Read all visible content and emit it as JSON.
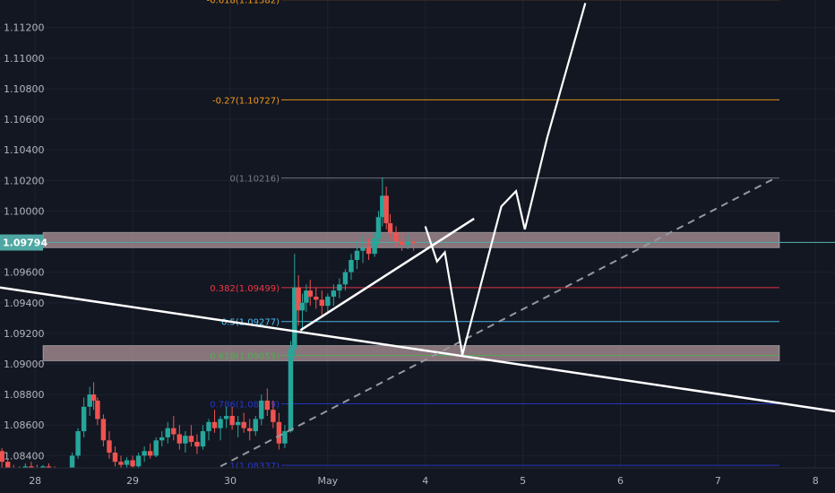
{
  "chart_data": {
    "type": "candlestick",
    "y_axis": {
      "ticks": [
        "1.08400",
        "1.08600",
        "1.08800",
        "1.09000",
        "1.09200",
        "1.09400",
        "1.09600",
        "1.09800",
        "1.10000",
        "1.10200",
        "1.10400",
        "1.10600",
        "1.10800",
        "1.11000",
        "1.11200"
      ],
      "ylim": [
        1.0832,
        1.1138
      ],
      "current_price": "1.09794",
      "current_price_bg": "#4fa7a3"
    },
    "x_axis": {
      "ticks": [
        {
          "label": "28",
          "day": 28
        },
        {
          "label": "29",
          "day": 29
        },
        {
          "label": "30",
          "day": 30
        },
        {
          "label": "May",
          "day": 31
        },
        {
          "label": "4",
          "day": 32
        },
        {
          "label": "5",
          "day": 33
        },
        {
          "label": "6",
          "day": 34
        },
        {
          "label": "7",
          "day": 35
        },
        {
          "label": "8",
          "day": 36
        }
      ],
      "xlim": [
        27.64,
        36.2
      ]
    },
    "colors": {
      "up": "#26a69a",
      "down": "#ef5350",
      "grid": "#1e2230",
      "background": "#131722"
    },
    "fib_levels": [
      {
        "label": "-0.618(1.11382)",
        "price": 1.11382,
        "color": "#f59b1c"
      },
      {
        "label": "-0.27(1.10727)",
        "price": 1.10727,
        "color": "#f59b1c"
      },
      {
        "label": "0(1.10216)",
        "price": 1.10216,
        "color": "#787b86"
      },
      {
        "label": "0.382(1.09499)",
        "price": 1.09499,
        "color": "#f23645"
      },
      {
        "label": "0.5(1.09277)",
        "price": 1.09277,
        "color": "#4fc3f7"
      },
      {
        "label": "0.618(1.09055)",
        "price": 1.09055,
        "color": "#4caf50"
      },
      {
        "label": "0.786(1.08739)",
        "price": 1.08739,
        "color": "#2936cc"
      },
      {
        "label": "1(1.08337)",
        "price": 1.08337,
        "color": "#2936cc"
      }
    ],
    "zones": [
      {
        "name": "resistance",
        "low": 1.0976,
        "high": 1.0986,
        "color": "#b0949a"
      },
      {
        "name": "support",
        "low": 1.0902,
        "high": 1.0912,
        "color": "#b0949a"
      }
    ],
    "current_price_line": 1.09794,
    "candles": [
      [
        27.66,
        1.0843,
        1.0845,
        1.0832,
        1.0836
      ],
      [
        27.72,
        1.0836,
        1.0838,
        1.0829,
        1.0832
      ],
      [
        27.78,
        1.0832,
        1.0834,
        1.0828,
        1.083
      ],
      [
        27.84,
        1.083,
        1.0833,
        1.0827,
        1.0831
      ],
      [
        27.9,
        1.0831,
        1.0835,
        1.0829,
        1.0833
      ],
      [
        27.96,
        1.0833,
        1.0836,
        1.083,
        1.0832
      ],
      [
        28.02,
        1.0832,
        1.0834,
        1.0829,
        1.0831
      ],
      [
        28.08,
        1.0831,
        1.0834,
        1.0829,
        1.0833
      ],
      [
        28.14,
        1.0833,
        1.0835,
        1.083,
        1.0831
      ],
      [
        28.2,
        1.0831,
        1.0833,
        1.0828,
        1.083
      ],
      [
        28.26,
        1.083,
        1.0832,
        1.0827,
        1.0829
      ],
      [
        28.32,
        1.0829,
        1.0831,
        1.0826,
        1.0828
      ],
      [
        28.38,
        1.0828,
        1.0842,
        1.0826,
        1.084
      ],
      [
        28.44,
        1.084,
        1.0858,
        1.0838,
        1.0856
      ],
      [
        28.5,
        1.0856,
        1.0878,
        1.0852,
        1.0872
      ],
      [
        28.56,
        1.0872,
        1.0885,
        1.0866,
        1.088
      ],
      [
        28.6,
        1.088,
        1.0888,
        1.087,
        1.0876
      ],
      [
        28.64,
        1.0876,
        1.0878,
        1.086,
        1.0864
      ],
      [
        28.7,
        1.0864,
        1.0867,
        1.0846,
        1.085
      ],
      [
        28.76,
        1.085,
        1.0856,
        1.0838,
        1.0842
      ],
      [
        28.82,
        1.0842,
        1.0846,
        1.0833,
        1.0836
      ],
      [
        28.88,
        1.0836,
        1.084,
        1.083,
        1.0834
      ],
      [
        28.94,
        1.0834,
        1.0839,
        1.083,
        1.0837
      ],
      [
        29.0,
        1.0837,
        1.084,
        1.0831,
        1.0833
      ],
      [
        29.06,
        1.0833,
        1.0842,
        1.0831,
        1.084
      ],
      [
        29.12,
        1.084,
        1.0846,
        1.0836,
        1.0843
      ],
      [
        29.18,
        1.0843,
        1.0848,
        1.0838,
        1.084
      ],
      [
        29.24,
        1.084,
        1.0852,
        1.0839,
        1.085
      ],
      [
        29.3,
        1.085,
        1.0856,
        1.0846,
        1.0852
      ],
      [
        29.36,
        1.0852,
        1.0862,
        1.0848,
        1.0858
      ],
      [
        29.42,
        1.0858,
        1.0866,
        1.085,
        1.0854
      ],
      [
        29.48,
        1.0854,
        1.086,
        1.0844,
        1.0848
      ],
      [
        29.54,
        1.0848,
        1.0856,
        1.0842,
        1.0853
      ],
      [
        29.6,
        1.0853,
        1.086,
        1.0846,
        1.0849
      ],
      [
        29.66,
        1.0849,
        1.0854,
        1.0841,
        1.0846
      ],
      [
        29.72,
        1.0846,
        1.086,
        1.0844,
        1.0856
      ],
      [
        29.78,
        1.0856,
        1.0864,
        1.085,
        1.0862
      ],
      [
        29.84,
        1.0862,
        1.087,
        1.0855,
        1.0858
      ],
      [
        29.9,
        1.0858,
        1.0866,
        1.085,
        1.0864
      ],
      [
        29.96,
        1.0864,
        1.0872,
        1.0858,
        1.0866
      ],
      [
        30.02,
        1.0866,
        1.0872,
        1.0857,
        1.086
      ],
      [
        30.08,
        1.086,
        1.0866,
        1.0852,
        1.0862
      ],
      [
        30.14,
        1.0862,
        1.0868,
        1.0855,
        1.0858
      ],
      [
        30.2,
        1.0858,
        1.0864,
        1.085,
        1.0856
      ],
      [
        30.26,
        1.0856,
        1.0866,
        1.0853,
        1.0864
      ],
      [
        30.32,
        1.0864,
        1.088,
        1.086,
        1.0876
      ],
      [
        30.38,
        1.0876,
        1.0884,
        1.0866,
        1.087
      ],
      [
        30.44,
        1.087,
        1.0876,
        1.0858,
        1.0862
      ],
      [
        30.5,
        1.0862,
        1.0868,
        1.0844,
        1.0848
      ],
      [
        30.56,
        1.0848,
        1.086,
        1.0845,
        1.0856
      ],
      [
        30.62,
        1.0856,
        1.0915,
        1.0855,
        1.091
      ],
      [
        30.66,
        1.091,
        1.0972,
        1.0905,
        1.095
      ],
      [
        30.7,
        1.095,
        1.0958,
        1.0925,
        1.0935
      ],
      [
        30.74,
        1.0935,
        1.0946,
        1.0922,
        1.094
      ],
      [
        30.78,
        1.094,
        1.0952,
        1.0934,
        1.0948
      ],
      [
        30.82,
        1.0948,
        1.0955,
        1.0938,
        1.0944
      ],
      [
        30.88,
        1.0944,
        1.095,
        1.0936,
        1.0942
      ],
      [
        30.94,
        1.0942,
        1.0948,
        1.0932,
        1.0938
      ],
      [
        31.0,
        1.0938,
        1.0946,
        1.0934,
        1.0944
      ],
      [
        31.06,
        1.0944,
        1.0952,
        1.0938,
        1.0948
      ],
      [
        31.12,
        1.0948,
        1.0956,
        1.0943,
        1.0952
      ],
      [
        31.18,
        1.0952,
        1.0962,
        1.0948,
        1.096
      ],
      [
        31.24,
        1.096,
        1.0972,
        1.0955,
        1.0968
      ],
      [
        31.3,
        1.0968,
        1.098,
        1.0962,
        1.0974
      ],
      [
        31.36,
        1.0974,
        1.0984,
        1.0966,
        1.0976
      ],
      [
        31.42,
        1.0976,
        1.0982,
        1.0968,
        1.0972
      ],
      [
        31.48,
        1.0972,
        1.0986,
        1.097,
        1.0982
      ],
      [
        31.52,
        1.0982,
        1.1,
        1.0978,
        1.0996
      ],
      [
        31.56,
        1.0996,
        1.1022,
        1.099,
        1.101
      ],
      [
        31.6,
        1.101,
        1.1016,
        1.0988,
        1.0992
      ],
      [
        31.64,
        1.0992,
        1.0998,
        1.0982,
        1.0986
      ],
      [
        31.7,
        1.0986,
        1.099,
        1.0976,
        1.098
      ],
      [
        31.76,
        1.098,
        1.0986,
        1.0974,
        1.0978
      ],
      [
        31.82,
        1.0978,
        1.0984,
        1.0975,
        1.098
      ],
      [
        31.88,
        1.098,
        1.0982,
        1.0974,
        1.0979
      ]
    ],
    "projection_path": [
      [
        32.0,
        1.099
      ],
      [
        32.12,
        1.0967
      ],
      [
        32.2,
        1.0973
      ],
      [
        32.38,
        1.0906
      ],
      [
        32.78,
        1.1003
      ],
      [
        32.93,
        1.1013
      ],
      [
        33.02,
        1.0988
      ],
      [
        33.25,
        1.1048
      ],
      [
        33.64,
        1.1136
      ]
    ],
    "trendlines": [
      {
        "name": "trendline-descending",
        "from": [
          27.64,
          1.095
        ],
        "to": [
          36.2,
          1.0869
        ],
        "style": "solid"
      },
      {
        "name": "trendline-ascending",
        "from": [
          30.72,
          1.0922
        ],
        "to": [
          32.5,
          1.0995
        ],
        "style": "solid"
      },
      {
        "name": "trendline-dashed",
        "from": [
          29.9,
          1.0833
        ],
        "to": [
          35.6,
          1.1022
        ],
        "style": "dashed"
      }
    ]
  }
}
